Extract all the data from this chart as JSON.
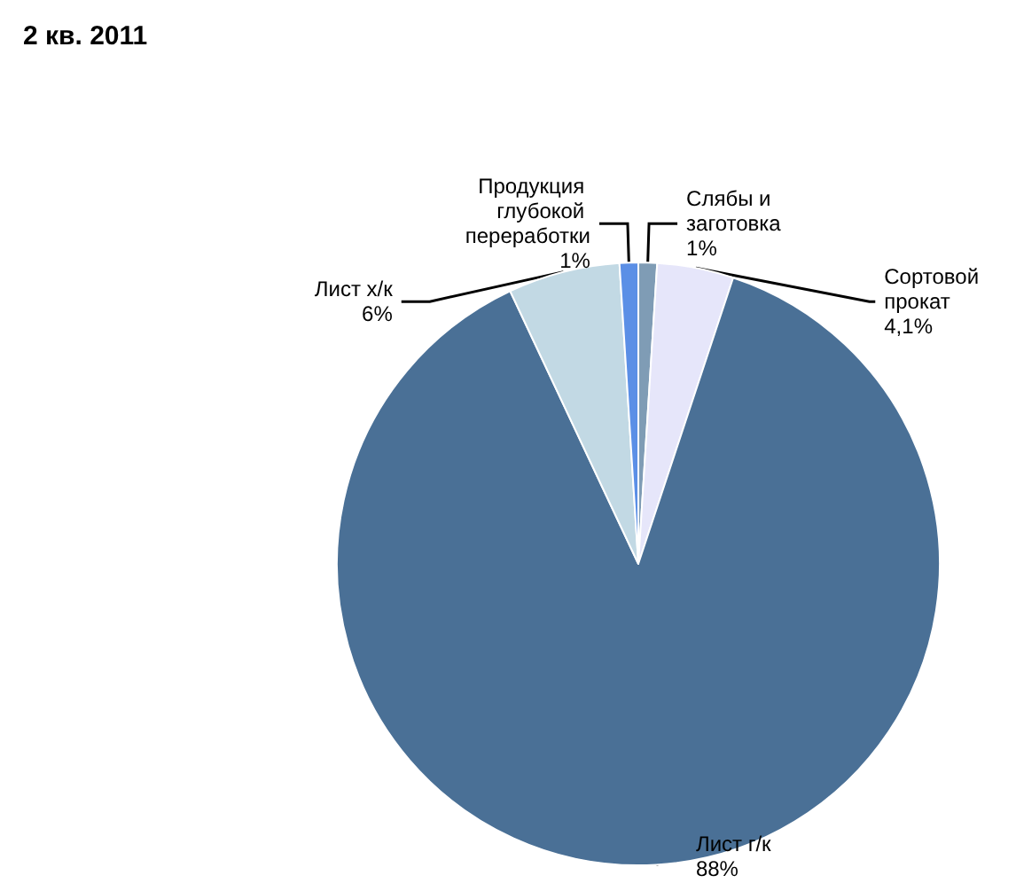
{
  "chart_data": {
    "type": "pie",
    "title": "2 кв. 2011",
    "categories": [
      "Слябы и заготовка",
      "Сортовой прокат",
      "Лист г/к",
      "Лист х/к",
      "Продукция глубокой переработки"
    ],
    "values": [
      1,
      4.1,
      88,
      6,
      1
    ],
    "value_labels": [
      "1%",
      "4,1%",
      "88%",
      "6%",
      "1%"
    ],
    "colors": [
      "#7f9cb5",
      "#e6e6fa",
      "#4a7096",
      "#c2d9e4",
      "#5b8fe6"
    ]
  }
}
